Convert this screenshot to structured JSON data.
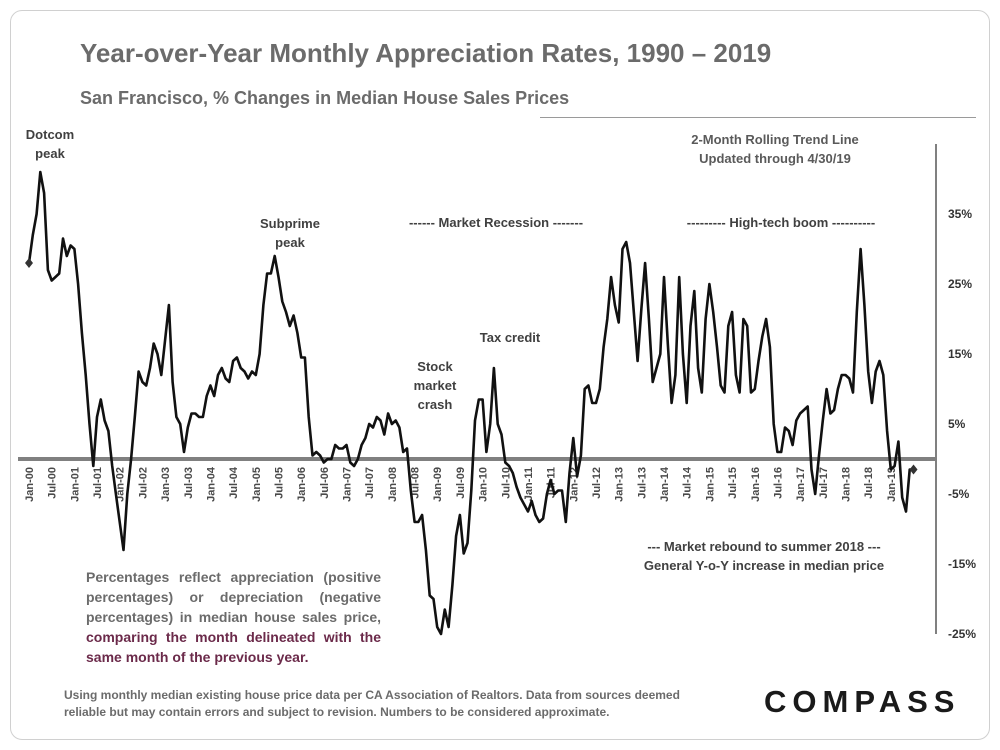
{
  "title": "Year-over-Year Monthly Appreciation Rates, 1990 – 2019",
  "subtitle": "San Francisco, % Changes in Median House Sales Prices",
  "annotations": {
    "dotcom": [
      "Dotcom",
      "peak"
    ],
    "subprime": [
      "Subprime",
      "peak"
    ],
    "recession": "------ Market Recession -------",
    "hightech": "--------- High-tech boom ----------",
    "stock": [
      "Stock",
      "market",
      "crash"
    ],
    "taxcredit": "Tax credit",
    "trend": [
      "2-Month Rolling Trend Line",
      "Updated through 4/30/19"
    ],
    "rebound": [
      "--- Market rebound to summer 2018 ---",
      "General Y-o-Y increase in median price"
    ]
  },
  "note": {
    "plain": "Percentages reflect appreciation (positive percentages) or depreciation (negative percentages) in median house sales price,",
    "highlight": "comparing the month delineated with the same month of the previous year."
  },
  "footer": "Using monthly median existing house price data per CA Association of Realtors. Data from sources deemed reliable but may contain errors and subject to revision. Numbers to be considered approximate.",
  "logo": "COMPASS",
  "colors": {
    "line": "#111111",
    "zero_axis": "#808080",
    "highlight": "#6b2a4a"
  },
  "chart_data": {
    "type": "line",
    "ylim": [
      -25,
      45
    ],
    "yticks": [
      35,
      25,
      15,
      5,
      -5,
      -15,
      -25
    ],
    "ytick_labels": [
      "35%",
      "25%",
      "15%",
      "5%",
      "-5%",
      "-15%",
      "-25%"
    ],
    "xticks": [
      "Jan-00",
      "Jul-00",
      "Jan-01",
      "Jul-01",
      "Jan-02",
      "Jul-02",
      "Jan-03",
      "Jul-03",
      "Jan-04",
      "Jul-04",
      "Jan-05",
      "Jul-05",
      "Jan-06",
      "Jul-06",
      "Jan-07",
      "Jul-07",
      "Jan-08",
      "Jul-08",
      "Jan-09",
      "Jul-09",
      "Jan-10",
      "Jul-10",
      "Jan-11",
      "Jul-11",
      "Jan-12",
      "Jul-12",
      "Jan-13",
      "Jul-13",
      "Jan-14",
      "Jul-14",
      "Jan-15",
      "Jul-15",
      "Jan-16",
      "Jul-16",
      "Jan-17",
      "Jul-17",
      "Jan-18",
      "Jul-18",
      "Jan-19"
    ],
    "x_start": "Jan-00",
    "values": [
      28,
      32,
      35,
      41,
      38,
      27,
      25.5,
      26,
      26.5,
      31.5,
      29,
      30.5,
      30,
      25,
      18,
      12,
      5,
      -1,
      6,
      8.5,
      5.5,
      4,
      -1,
      -5,
      -9,
      -13,
      -5,
      0,
      6,
      12.5,
      11,
      10.5,
      13,
      16.5,
      15,
      12,
      17,
      22,
      11,
      6,
      5,
      1,
      4.5,
      6.5,
      6.5,
      6,
      6,
      9,
      10.5,
      9,
      12,
      13,
      11.5,
      11,
      14,
      14.5,
      13,
      12.5,
      11.5,
      12.5,
      12,
      15,
      22,
      26.5,
      26.5,
      29,
      26,
      22.5,
      21,
      19,
      20.5,
      18,
      14.5,
      14.5,
      6,
      0.5,
      1,
      0.5,
      -0.5,
      0,
      0,
      2,
      1.5,
      1.5,
      2,
      -0.5,
      -1,
      0,
      2,
      3,
      5,
      4.5,
      6,
      5.5,
      3.5,
      6.5,
      5,
      5.5,
      4.5,
      1,
      1.5,
      -4.5,
      -9,
      -9,
      -8,
      -13,
      -19.5,
      -20,
      -24,
      -25,
      -21.5,
      -24,
      -18,
      -11,
      -8,
      -13.5,
      -12,
      -4.5,
      5.5,
      8.5,
      8.5,
      1,
      5,
      13,
      5,
      3.5,
      -0.5,
      -1,
      -2,
      -4,
      -5.5,
      -6.5,
      -7.5,
      -6,
      -8,
      -9,
      -8.5,
      -5,
      -3,
      -5,
      -4.5,
      -4.5,
      -9,
      -2,
      3,
      -2.5,
      0.5,
      10,
      10.5,
      8,
      8,
      10,
      16,
      20,
      26,
      22,
      19.5,
      30,
      31,
      28,
      21,
      14,
      21.5,
      28,
      20,
      11,
      13,
      15,
      26,
      16.5,
      8,
      12,
      26,
      15,
      8,
      19,
      24,
      13,
      9.5,
      20,
      25,
      21,
      16,
      10.5,
      9.5,
      19,
      21,
      12,
      9.5,
      20,
      19,
      9.5,
      10,
      14,
      17.5,
      20,
      16,
      5,
      1,
      1,
      4.5,
      4,
      2,
      5.5,
      6.5,
      7,
      7.5,
      -1.5,
      -5,
      0.5,
      5.5,
      10,
      6.5,
      7,
      10,
      12,
      12,
      11.5,
      9.5,
      21,
      30,
      22,
      12.5,
      8,
      12.5,
      14,
      12,
      4,
      -1.5,
      -1,
      2.5,
      -5.5,
      -7.5,
      -1.5,
      -1.5
    ]
  }
}
